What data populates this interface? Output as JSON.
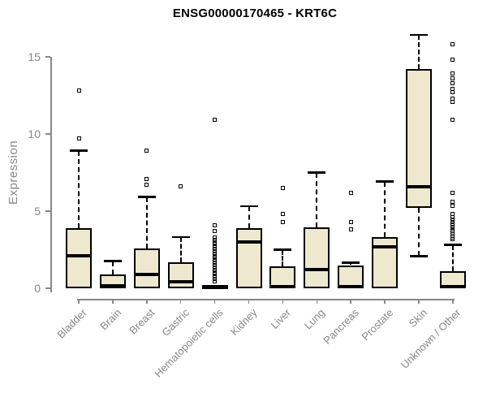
{
  "chart_data": {
    "type": "boxplot",
    "title": "ENSG00000170465 - KRT6C",
    "ylabel": "Expression",
    "xlabel": "",
    "yticks": [
      0,
      5,
      10,
      15
    ],
    "ylim": [
      0,
      16.6
    ],
    "grid": false,
    "legend": null,
    "box_fill": "#EDE8CE",
    "box_border": "#000000",
    "axis_color": "#878787",
    "categories": [
      "Bladder",
      "Brain",
      "Breast",
      "Gastric",
      "Hematopoietic cells",
      "Kidney",
      "Liver",
      "Lung",
      "Pancreas",
      "Prostate",
      "Skin",
      "Unknown / Other"
    ],
    "boxes": [
      {
        "category": "Bladder",
        "whisker_lo": 0,
        "q1": 0,
        "median": 2.1,
        "q3": 3.9,
        "whisker_hi": 8.9,
        "outliers": [
          9.7,
          12.8
        ]
      },
      {
        "category": "Brain",
        "whisker_lo": 0,
        "q1": 0,
        "median": 0.15,
        "q3": 0.9,
        "whisker_hi": 1.75,
        "outliers": []
      },
      {
        "category": "Breast",
        "whisker_lo": 0,
        "q1": 0,
        "median": 0.9,
        "q3": 2.6,
        "whisker_hi": 5.9,
        "outliers": [
          6.7,
          7.1,
          8.9
        ]
      },
      {
        "category": "Gastric",
        "whisker_lo": 0,
        "q1": 0,
        "median": 0.4,
        "q3": 1.7,
        "whisker_hi": 3.3,
        "outliers": [
          6.6
        ]
      },
      {
        "category": "Hematopoietic cells",
        "whisker_lo": 0,
        "q1": 0,
        "median": 0.05,
        "q3": 0.2,
        "whisker_hi": 0.2,
        "outliers": [
          0.45,
          0.6,
          0.75,
          0.9,
          1.05,
          1.2,
          1.35,
          1.5,
          1.65,
          1.8,
          1.95,
          2.1,
          2.25,
          2.4,
          2.55,
          2.7,
          2.85,
          3.0,
          3.15,
          3.3,
          3.7,
          4.1,
          10.9
        ]
      },
      {
        "category": "Kidney",
        "whisker_lo": 0,
        "q1": 0,
        "median": 3.0,
        "q3": 3.9,
        "whisker_hi": 5.3,
        "outliers": []
      },
      {
        "category": "Liver",
        "whisker_lo": 0,
        "q1": 0,
        "median": 0.1,
        "q3": 1.4,
        "whisker_hi": 2.5,
        "outliers": [
          4.3,
          4.8,
          6.5
        ]
      },
      {
        "category": "Lung",
        "whisker_lo": 0,
        "q1": 0,
        "median": 1.2,
        "q3": 3.95,
        "whisker_hi": 7.5,
        "outliers": []
      },
      {
        "category": "Pancreas",
        "whisker_lo": 0,
        "q1": 0,
        "median": 0.1,
        "q3": 1.5,
        "whisker_hi": 1.65,
        "outliers": [
          3.8,
          4.3,
          6.2
        ]
      },
      {
        "category": "Prostate",
        "whisker_lo": 0,
        "q1": 0,
        "median": 2.7,
        "q3": 3.3,
        "whisker_hi": 6.9,
        "outliers": []
      },
      {
        "category": "Skin",
        "whisker_lo": 2.1,
        "q1": 5.2,
        "median": 6.6,
        "q3": 14.2,
        "whisker_hi": 16.4,
        "outliers": []
      },
      {
        "category": "Unknown / Other",
        "whisker_lo": 0,
        "q1": 0,
        "median": 0.1,
        "q3": 1.1,
        "whisker_hi": 2.8,
        "outliers": [
          3.2,
          3.3,
          3.4,
          3.5,
          3.6,
          3.7,
          3.8,
          3.9,
          4.0,
          4.15,
          4.3,
          4.45,
          4.6,
          4.8,
          5.35,
          5.6,
          6.2,
          10.9,
          12.1,
          12.3,
          12.7,
          12.9,
          13.3,
          13.6,
          13.9,
          14.8,
          15.8
        ]
      }
    ]
  }
}
